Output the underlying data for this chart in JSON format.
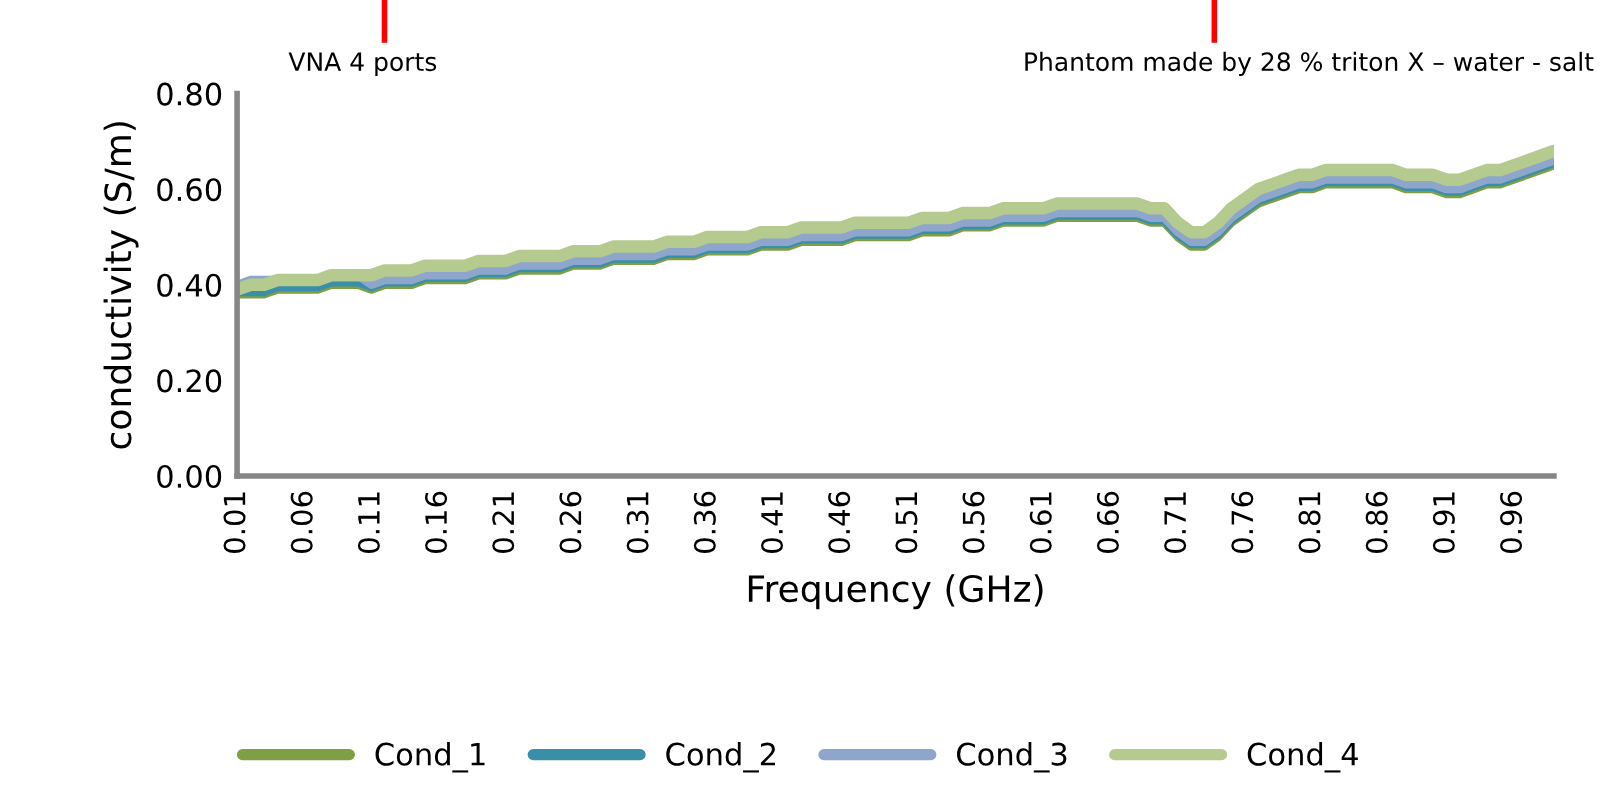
{
  "chart_data": {
    "type": "line",
    "xlabel": "Frequency (GHz)",
    "ylabel": "conductivity (S/m)",
    "categories": [
      "0.01",
      null,
      null,
      null,
      null,
      "0.06",
      null,
      null,
      null,
      null,
      "0.11",
      null,
      null,
      null,
      null,
      "0.16",
      null,
      null,
      null,
      null,
      "0.21",
      null,
      null,
      null,
      null,
      "0.26",
      null,
      null,
      null,
      null,
      "0.31",
      null,
      null,
      null,
      null,
      "0.36",
      null,
      null,
      null,
      null,
      "0.41",
      null,
      null,
      null,
      null,
      "0.46",
      null,
      null,
      null,
      null,
      "0.51",
      null,
      null,
      null,
      null,
      "0.56",
      null,
      null,
      null,
      null,
      "0.61",
      null,
      null,
      null,
      null,
      "0.66",
      null,
      null,
      null,
      null,
      "0.71",
      null,
      null,
      null,
      null,
      "0.76",
      null,
      null,
      null,
      null,
      "0.81",
      null,
      null,
      null,
      null,
      "0.86",
      null,
      null,
      null,
      null,
      "0.91",
      null,
      null,
      null,
      null,
      "0.96",
      null,
      null,
      null
    ],
    "ylim": [
      0,
      0.8
    ],
    "yticks": [
      {
        "value": 0,
        "label": "0.00"
      },
      {
        "value": 0.2,
        "label": "0.20"
      },
      {
        "value": 0.4,
        "label": "0.40"
      },
      {
        "value": 0.6,
        "label": "0.60"
      },
      {
        "value": 0.8,
        "label": "0.80"
      }
    ],
    "grid": false,
    "legend": "bottom",
    "marker": "none",
    "line_style": "solid",
    "annotations": [
      "VNA 4 ports",
      "Phantom made by 28 % triton X – water - salt"
    ],
    "series": [
      {
        "name": "Cond_1",
        "color": "#7f9f45",
        "values": [
          0.38,
          0.38,
          0.38,
          0.39,
          0.39,
          0.39,
          0.39,
          0.4,
          0.4,
          0.4,
          0.39,
          0.4,
          0.4,
          0.4,
          0.41,
          0.41,
          0.41,
          0.41,
          0.42,
          0.42,
          0.42,
          0.43,
          0.43,
          0.43,
          0.43,
          0.44,
          0.44,
          0.44,
          0.45,
          0.45,
          0.45,
          0.45,
          0.46,
          0.46,
          0.46,
          0.47,
          0.47,
          0.47,
          0.47,
          0.48,
          0.48,
          0.48,
          0.49,
          0.49,
          0.49,
          0.49,
          0.5,
          0.5,
          0.5,
          0.5,
          0.5,
          0.51,
          0.51,
          0.51,
          0.52,
          0.52,
          0.52,
          0.53,
          0.53,
          0.53,
          0.53,
          0.54,
          0.54,
          0.54,
          0.54,
          0.54,
          0.54,
          0.54,
          0.53,
          0.53,
          0.5,
          0.48,
          0.48,
          0.5,
          0.53,
          0.55,
          0.57,
          0.58,
          0.59,
          0.6,
          0.6,
          0.61,
          0.61,
          0.61,
          0.61,
          0.61,
          0.61,
          0.6,
          0.6,
          0.6,
          0.59,
          0.59,
          0.6,
          0.61,
          0.61,
          0.62,
          0.63,
          0.64,
          0.65
        ]
      },
      {
        "name": "Cond_2",
        "color": "#3a8fa8",
        "values": [
          0.385,
          0.385,
          0.385,
          0.395,
          0.395,
          0.395,
          0.395,
          0.405,
          0.405,
          0.405,
          0.395,
          0.405,
          0.405,
          0.405,
          0.415,
          0.415,
          0.415,
          0.415,
          0.425,
          0.425,
          0.425,
          0.435,
          0.435,
          0.435,
          0.435,
          0.445,
          0.445,
          0.445,
          0.455,
          0.455,
          0.455,
          0.455,
          0.465,
          0.465,
          0.465,
          0.475,
          0.475,
          0.475,
          0.475,
          0.485,
          0.485,
          0.485,
          0.495,
          0.495,
          0.495,
          0.495,
          0.505,
          0.505,
          0.505,
          0.505,
          0.505,
          0.515,
          0.515,
          0.515,
          0.525,
          0.525,
          0.525,
          0.535,
          0.535,
          0.535,
          0.535,
          0.545,
          0.545,
          0.545,
          0.545,
          0.545,
          0.545,
          0.545,
          0.535,
          0.535,
          0.505,
          0.485,
          0.485,
          0.505,
          0.535,
          0.555,
          0.575,
          0.585,
          0.595,
          0.605,
          0.605,
          0.615,
          0.615,
          0.615,
          0.615,
          0.615,
          0.615,
          0.605,
          0.605,
          0.605,
          0.595,
          0.595,
          0.605,
          0.615,
          0.615,
          0.625,
          0.635,
          0.645,
          0.655
        ]
      },
      {
        "name": "Cond_3",
        "color": "#8ea5cc",
        "values": [
          0.4,
          0.41,
          0.41,
          0.41,
          0.41,
          0.41,
          0.41,
          0.42,
          0.42,
          0.42,
          0.4,
          0.41,
          0.41,
          0.41,
          0.42,
          0.42,
          0.42,
          0.42,
          0.43,
          0.43,
          0.43,
          0.44,
          0.44,
          0.44,
          0.44,
          0.45,
          0.45,
          0.45,
          0.46,
          0.46,
          0.46,
          0.46,
          0.47,
          0.47,
          0.47,
          0.48,
          0.48,
          0.48,
          0.48,
          0.49,
          0.49,
          0.49,
          0.5,
          0.5,
          0.5,
          0.5,
          0.51,
          0.51,
          0.51,
          0.51,
          0.51,
          0.52,
          0.52,
          0.52,
          0.53,
          0.53,
          0.53,
          0.54,
          0.54,
          0.54,
          0.54,
          0.55,
          0.55,
          0.55,
          0.55,
          0.55,
          0.55,
          0.55,
          0.54,
          0.54,
          0.51,
          0.49,
          0.49,
          0.51,
          0.54,
          0.56,
          0.58,
          0.59,
          0.6,
          0.61,
          0.61,
          0.62,
          0.62,
          0.62,
          0.62,
          0.62,
          0.62,
          0.61,
          0.61,
          0.61,
          0.6,
          0.6,
          0.61,
          0.62,
          0.62,
          0.63,
          0.64,
          0.65,
          0.66
        ]
      },
      {
        "name": "Cond_4",
        "color": "#b4ca8f",
        "values": [
          0.39,
          0.4,
          0.4,
          0.41,
          0.41,
          0.41,
          0.41,
          0.42,
          0.42,
          0.42,
          0.42,
          0.43,
          0.43,
          0.43,
          0.44,
          0.44,
          0.44,
          0.44,
          0.45,
          0.45,
          0.45,
          0.46,
          0.46,
          0.46,
          0.46,
          0.47,
          0.47,
          0.47,
          0.48,
          0.48,
          0.48,
          0.48,
          0.49,
          0.49,
          0.49,
          0.5,
          0.5,
          0.5,
          0.5,
          0.51,
          0.51,
          0.51,
          0.52,
          0.52,
          0.52,
          0.52,
          0.53,
          0.53,
          0.53,
          0.53,
          0.53,
          0.54,
          0.54,
          0.54,
          0.55,
          0.55,
          0.55,
          0.56,
          0.56,
          0.56,
          0.56,
          0.57,
          0.57,
          0.57,
          0.57,
          0.57,
          0.57,
          0.57,
          0.56,
          0.56,
          0.53,
          0.51,
          0.51,
          0.53,
          0.56,
          0.58,
          0.6,
          0.61,
          0.62,
          0.63,
          0.63,
          0.64,
          0.64,
          0.64,
          0.64,
          0.64,
          0.64,
          0.63,
          0.63,
          0.63,
          0.62,
          0.62,
          0.63,
          0.64,
          0.64,
          0.65,
          0.66,
          0.67,
          0.68
        ]
      }
    ]
  }
}
